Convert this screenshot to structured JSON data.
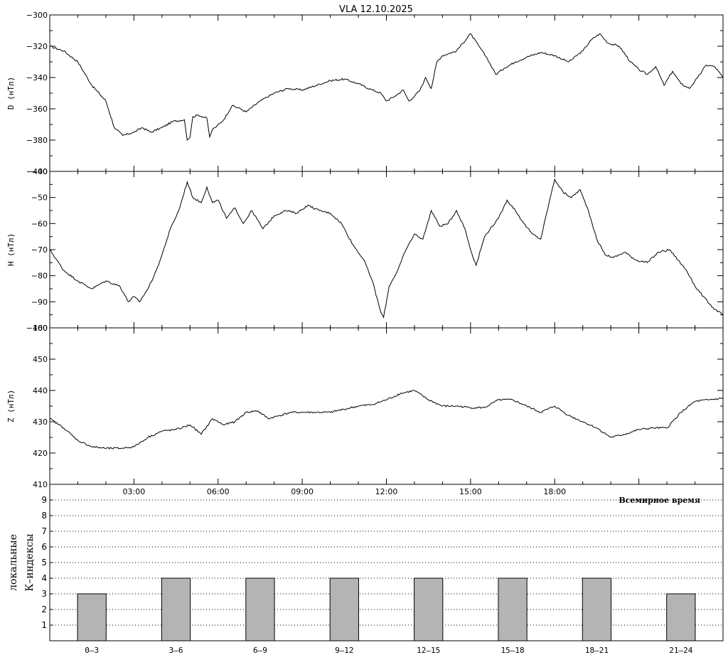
{
  "title": "VLA   12.10.2025",
  "colors": {
    "line": "#000000",
    "bar_fill": "#b4b4b4",
    "grid": "#000000",
    "background": "#ffffff"
  },
  "time_axis": {
    "ticks": [
      "03:00",
      "06:00",
      "09:00",
      "12:00",
      "15:00",
      "18:00"
    ],
    "tick_hours": [
      3,
      6,
      9,
      12,
      15,
      18
    ],
    "label": "Всемирное время",
    "range_hours": [
      0,
      24
    ]
  },
  "chart_data": [
    {
      "type": "line",
      "panel": "D",
      "ylabel": "D (нТл)",
      "ylim": [
        -400,
        -300
      ],
      "yticks": [
        -400,
        -380,
        -360,
        -340,
        -320,
        -300
      ],
      "ytick_labels": [
        "−400",
        "−380",
        "−360",
        "−340",
        "−320",
        "−300"
      ],
      "x": [
        0,
        0.5,
        1.0,
        1.5,
        2.0,
        2.3,
        2.6,
        3.0,
        3.3,
        3.6,
        4.0,
        4.4,
        4.8,
        4.9,
        5.0,
        5.1,
        5.3,
        5.6,
        5.7,
        5.8,
        5.9,
        6.2,
        6.5,
        6.8,
        7.0,
        7.5,
        8.0,
        8.5,
        9.0,
        9.5,
        10.0,
        10.5,
        11.0,
        11.5,
        11.8,
        12.0,
        12.3,
        12.6,
        12.8,
        13.0,
        13.2,
        13.4,
        13.6,
        13.8,
        14.0,
        14.5,
        15.0,
        15.3,
        15.6,
        15.9,
        16.2,
        16.6,
        17.0,
        17.5,
        18.0,
        18.5,
        19.0,
        19.3,
        19.6,
        19.9,
        20.3,
        20.7,
        21.0,
        21.3,
        21.6,
        21.9,
        22.2,
        22.5,
        22.8,
        23.1,
        23.4,
        23.7,
        24.0
      ],
      "y": [
        -320,
        -323,
        -330,
        -345,
        -355,
        -372,
        -377,
        -375,
        -372,
        -375,
        -372,
        -368,
        -367,
        -380,
        -378,
        -365,
        -364,
        -366,
        -378,
        -373,
        -372,
        -367,
        -358,
        -360,
        -362,
        -355,
        -350,
        -347,
        -348,
        -345,
        -342,
        -341,
        -344,
        -348,
        -350,
        -355,
        -352,
        -348,
        -355,
        -352,
        -348,
        -340,
        -347,
        -330,
        -326,
        -323,
        -312,
        -320,
        -328,
        -338,
        -334,
        -330,
        -327,
        -324,
        -326,
        -330,
        -323,
        -316,
        -312,
        -318,
        -320,
        -330,
        -335,
        -338,
        -333,
        -345,
        -336,
        -344,
        -347,
        -340,
        -332,
        -333,
        -340
      ]
    },
    {
      "type": "line",
      "panel": "H",
      "ylabel": "H (нТл)",
      "ylim": [
        -100,
        -40
      ],
      "yticks": [
        -100,
        -90,
        -80,
        -70,
        -60,
        -50,
        -40
      ],
      "ytick_labels": [
        "−100",
        "−90",
        "−80",
        "−70",
        "−60",
        "−50",
        "−40"
      ],
      "x": [
        0,
        0.5,
        1.0,
        1.5,
        2.0,
        2.5,
        2.8,
        3.0,
        3.2,
        3.5,
        3.8,
        4.0,
        4.3,
        4.6,
        4.9,
        5.1,
        5.4,
        5.6,
        5.8,
        6.0,
        6.3,
        6.6,
        6.9,
        7.2,
        7.6,
        8.0,
        8.4,
        8.8,
        9.2,
        9.6,
        10.0,
        10.4,
        10.8,
        11.2,
        11.5,
        11.8,
        11.9,
        12.1,
        12.4,
        12.7,
        13.0,
        13.3,
        13.6,
        13.9,
        14.2,
        14.5,
        14.8,
        15.0,
        15.2,
        15.5,
        15.7,
        16.0,
        16.3,
        16.6,
        16.9,
        17.2,
        17.5,
        17.8,
        18.0,
        18.3,
        18.6,
        18.9,
        19.2,
        19.5,
        19.8,
        20.1,
        20.5,
        20.9,
        21.3,
        21.7,
        22.1,
        22.4,
        22.7,
        23.0,
        23.3,
        23.6,
        24.0
      ],
      "y": [
        -70,
        -78,
        -82,
        -85,
        -82,
        -84,
        -90,
        -88,
        -90,
        -85,
        -78,
        -72,
        -62,
        -55,
        -44,
        -50,
        -52,
        -46,
        -52,
        -51,
        -58,
        -54,
        -60,
        -55,
        -62,
        -57,
        -55,
        -56,
        -53,
        -55,
        -56,
        -60,
        -68,
        -74,
        -82,
        -94,
        -96,
        -84,
        -78,
        -70,
        -64,
        -66,
        -55,
        -61,
        -60,
        -55,
        -62,
        -70,
        -76,
        -65,
        -62,
        -58,
        -51,
        -55,
        -60,
        -64,
        -66,
        -52,
        -43,
        -48,
        -50,
        -47,
        -55,
        -66,
        -72,
        -73,
        -71,
        -74,
        -75,
        -71,
        -70,
        -74,
        -78,
        -84,
        -88,
        -92,
        -95
      ]
    },
    {
      "type": "line",
      "panel": "Z",
      "ylabel": "Z (нТл)",
      "ylim": [
        410,
        460
      ],
      "yticks": [
        410,
        420,
        430,
        440,
        450,
        460
      ],
      "ytick_labels": [
        "410",
        "420",
        "430",
        "440",
        "450",
        "460"
      ],
      "x": [
        0,
        0.5,
        1.0,
        1.5,
        2.0,
        2.5,
        3.0,
        3.5,
        4.0,
        4.5,
        5.0,
        5.4,
        5.8,
        6.2,
        6.6,
        7.0,
        7.4,
        7.8,
        8.2,
        8.6,
        9.0,
        9.5,
        10.0,
        10.5,
        11.0,
        11.5,
        12.0,
        12.5,
        13.0,
        13.5,
        14.0,
        14.5,
        15.0,
        15.5,
        16.0,
        16.5,
        17.0,
        17.5,
        18.0,
        18.5,
        19.0,
        19.5,
        20.0,
        20.5,
        21.0,
        21.5,
        22.0,
        22.5,
        23.0,
        23.5,
        24.0
      ],
      "y": [
        431,
        428,
        424,
        422,
        421.5,
        421.5,
        422,
        425,
        427,
        427.5,
        429,
        426,
        431,
        429,
        430,
        433,
        433.5,
        431,
        432,
        433,
        433,
        433,
        433,
        434,
        435,
        435.5,
        437,
        439,
        440,
        437,
        435,
        435,
        434.5,
        434.5,
        437,
        437,
        435,
        433,
        435,
        432,
        430,
        428,
        425,
        426,
        427.5,
        428,
        428,
        433,
        436.5,
        437,
        437.5
      ]
    },
    {
      "type": "bar",
      "panel": "K",
      "ylabel": "локальные",
      "ylabel2": "К–индексы",
      "categories": [
        "0–3",
        "3–6",
        "6–9",
        "9–12",
        "12–15",
        "15–18",
        "18–21",
        "21–24"
      ],
      "values": [
        3,
        4,
        4,
        4,
        4,
        4,
        4,
        3
      ],
      "ylim": [
        0,
        10
      ],
      "yticks": [
        1,
        2,
        3,
        4,
        5,
        6,
        7,
        8,
        9
      ],
      "grid": "dotted horizontal"
    }
  ]
}
